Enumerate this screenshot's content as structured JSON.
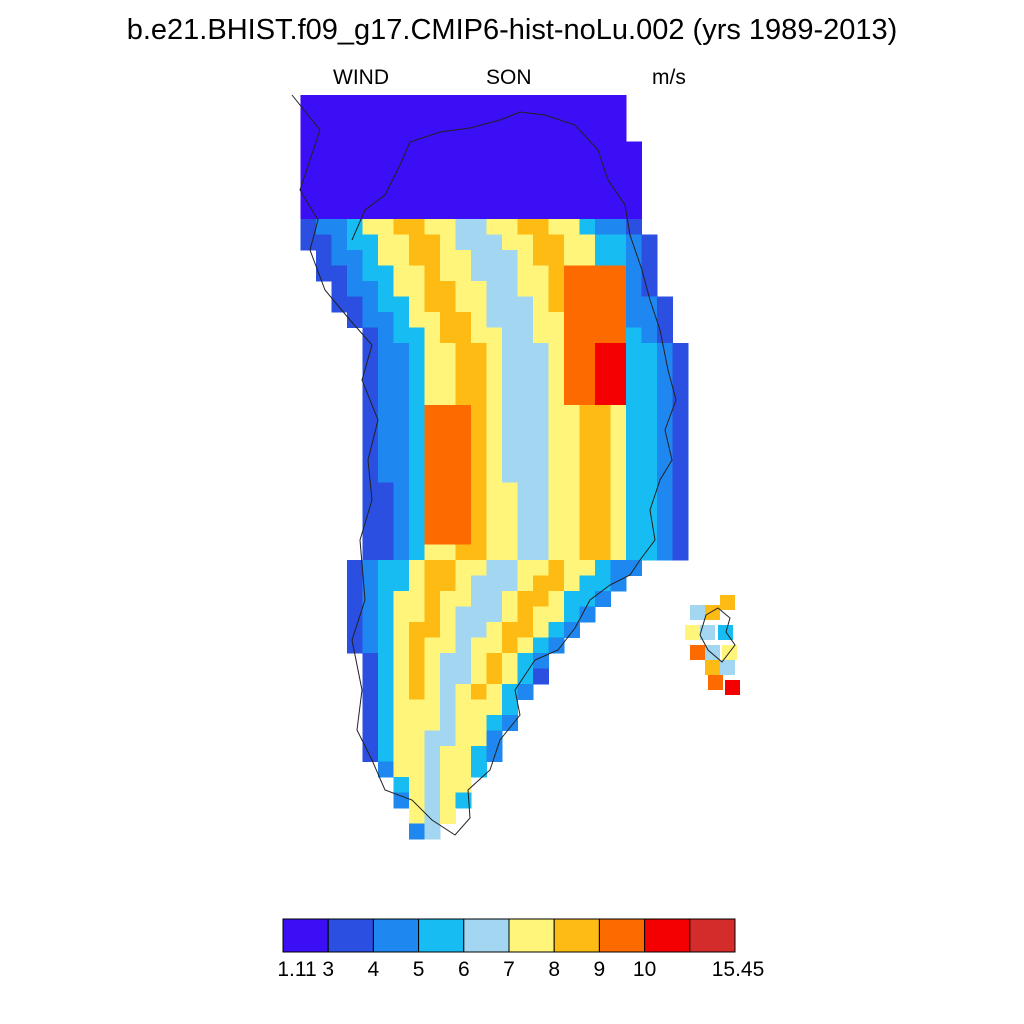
{
  "title": "b.e21.BHIST.f09_g17.CMIP6-hist-noLu.002 (yrs 1989-2013)",
  "subtitle": {
    "left": "WIND",
    "center": "SON",
    "right": "m/s"
  },
  "colorbar": {
    "levels": [
      "1.11",
      "3",
      "4",
      "5",
      "6",
      "7",
      "8",
      "9",
      "10",
      "15.45"
    ],
    "colors": [
      "#3b0ef5",
      "#2b4fe0",
      "#1e88f0",
      "#17bcf2",
      "#a3d6f0",
      "#fff57a",
      "#fdbb13",
      "#fd6b00",
      "#f50000",
      "#d42b2b"
    ]
  }
}
